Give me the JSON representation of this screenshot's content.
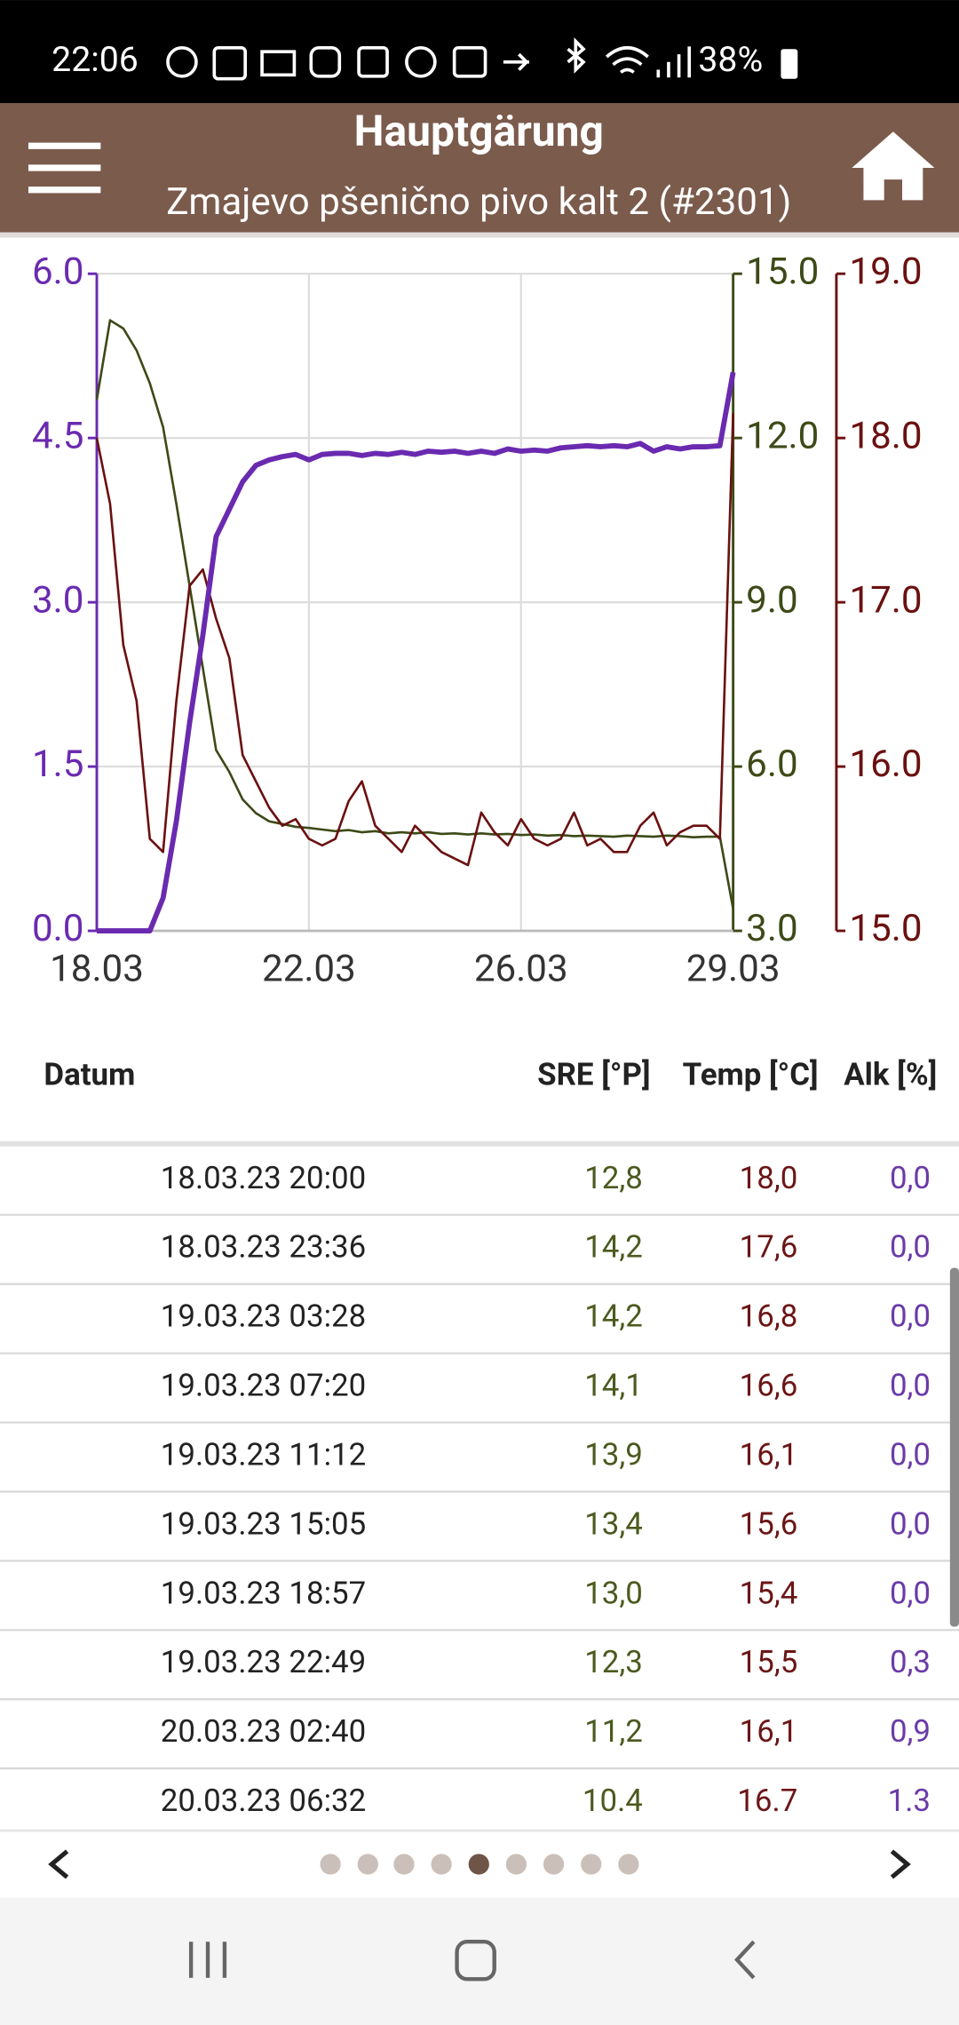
{
  "status_bar": {
    "time": "22:06",
    "battery": "38%"
  },
  "header": {
    "title": "Hauptgärung",
    "subtitle": "Zmajevo pšenično pivo kalt 2 (#2301)"
  },
  "chart_data": {
    "type": "line",
    "grid": true,
    "x": [
      0,
      0.25,
      0.5,
      0.75,
      1,
      1.25,
      1.5,
      1.75,
      2,
      2.25,
      2.5,
      2.75,
      3,
      3.25,
      3.5,
      3.75,
      4,
      4.25,
      4.5,
      4.75,
      5,
      5.25,
      5.5,
      5.75,
      6,
      6.25,
      6.5,
      6.75,
      7,
      7.25,
      7.5,
      7.75,
      8,
      8.25,
      8.5,
      8.75,
      9,
      9.25,
      9.5,
      9.75,
      10,
      10.25,
      10.5,
      10.75,
      11,
      11.25,
      11.5,
      11.75,
      12
    ],
    "xlim": [
      0,
      12
    ],
    "xticks": [
      {
        "value": 0,
        "label": "18.03"
      },
      {
        "value": 4,
        "label": "22.03"
      },
      {
        "value": 8,
        "label": "26.03"
      },
      {
        "value": 12,
        "label": "29.03"
      }
    ],
    "ylim": [
      0,
      6
    ],
    "yticks": [
      {
        "value": 0,
        "label": "0.0"
      },
      1.5,
      {
        "value": 3,
        "label": "3.0"
      },
      4.5,
      {
        "value": 6,
        "label": "6.0"
      }
    ],
    "y2lim": [
      3,
      15
    ],
    "y2ticks": [
      {
        "value": 3,
        "label": "3.0"
      },
      {
        "value": 6,
        "label": "6.0"
      },
      {
        "value": 9,
        "label": "9.0"
      },
      {
        "value": 12,
        "label": "12.0"
      },
      {
        "value": 15,
        "label": "15.0"
      }
    ],
    "y3lim": [
      15,
      19
    ],
    "y3ticks": [
      {
        "value": 15,
        "label": "15.0"
      },
      {
        "value": 16,
        "label": "16.0"
      },
      {
        "value": 17,
        "label": "17.0"
      },
      {
        "value": 18,
        "label": "18.0"
      },
      {
        "value": 19,
        "label": "19.0"
      }
    ],
    "series": [
      {
        "color": "#3d4a17",
        "axis": "y2",
        "values": [
          12.7,
          14.15,
          14.0,
          13.6,
          13.0,
          12.2,
          10.8,
          9.3,
          7.8,
          6.3,
          5.9,
          5.4,
          5.15,
          5.0,
          4.95,
          4.9,
          4.88,
          4.85,
          4.82,
          4.84,
          4.8,
          4.82,
          4.78,
          4.8,
          4.78,
          4.8,
          4.77,
          4.78,
          4.76,
          4.78,
          4.76,
          4.77,
          4.75,
          4.76,
          4.74,
          4.75,
          4.73,
          4.74,
          4.73,
          4.72,
          4.74,
          4.73,
          4.72,
          4.74,
          4.73,
          4.71,
          4.72,
          4.72,
          3.4
        ]
      },
      {
        "color": "#6b1010",
        "axis": "y3",
        "values": [
          18.0,
          17.6,
          16.74,
          16.4,
          15.56,
          15.48,
          16.4,
          17.1,
          17.2,
          16.9,
          16.66,
          16.07,
          15.91,
          15.75,
          15.64,
          15.68,
          15.56,
          15.52,
          15.56,
          15.79,
          15.91,
          15.64,
          15.56,
          15.48,
          15.64,
          15.56,
          15.48,
          15.44,
          15.4,
          15.72,
          15.6,
          15.52,
          15.68,
          15.56,
          15.52,
          15.56,
          15.72,
          15.52,
          15.56,
          15.48,
          15.48,
          15.64,
          15.72,
          15.52,
          15.6,
          15.64,
          15.64,
          15.56,
          18.15
        ]
      },
      {
        "color": "#6a2ab0",
        "axis": "y",
        "values": [
          0,
          0,
          0,
          0,
          0,
          0.3,
          1.0,
          1.9,
          2.7,
          3.6,
          3.85,
          4.1,
          4.25,
          4.3,
          4.33,
          4.35,
          4.3,
          4.35,
          4.36,
          4.36,
          4.34,
          4.36,
          4.35,
          4.37,
          4.35,
          4.38,
          4.37,
          4.38,
          4.36,
          4.38,
          4.36,
          4.4,
          4.38,
          4.39,
          4.38,
          4.41,
          4.42,
          4.43,
          4.42,
          4.43,
          4.42,
          4.45,
          4.38,
          4.42,
          4.4,
          4.42,
          4.42,
          4.43,
          5.1
        ]
      }
    ]
  },
  "table": {
    "columns": [
      "Datum",
      "SRE [°P]",
      "Temp [°C]",
      "Alk [%]"
    ],
    "rows": [
      [
        "18.03.23 20:00",
        "12,8",
        "18,0",
        "0,0"
      ],
      [
        "18.03.23 23:36",
        "14,2",
        "17,6",
        "0,0"
      ],
      [
        "19.03.23 03:28",
        "14,2",
        "16,8",
        "0,0"
      ],
      [
        "19.03.23 07:20",
        "14,1",
        "16,6",
        "0,0"
      ],
      [
        "19.03.23 11:12",
        "13,9",
        "16,1",
        "0,0"
      ],
      [
        "19.03.23 15:05",
        "13,4",
        "15,6",
        "0,0"
      ],
      [
        "19.03.23 18:57",
        "13,0",
        "15,4",
        "0,0"
      ],
      [
        "19.03.23 22:49",
        "12,3",
        "15,5",
        "0,3"
      ],
      [
        "20.03.23 02:40",
        "11,2",
        "16,1",
        "0,9"
      ],
      [
        "20.03.23 06:32",
        "10.4",
        "16.7",
        "1.3"
      ]
    ]
  }
}
